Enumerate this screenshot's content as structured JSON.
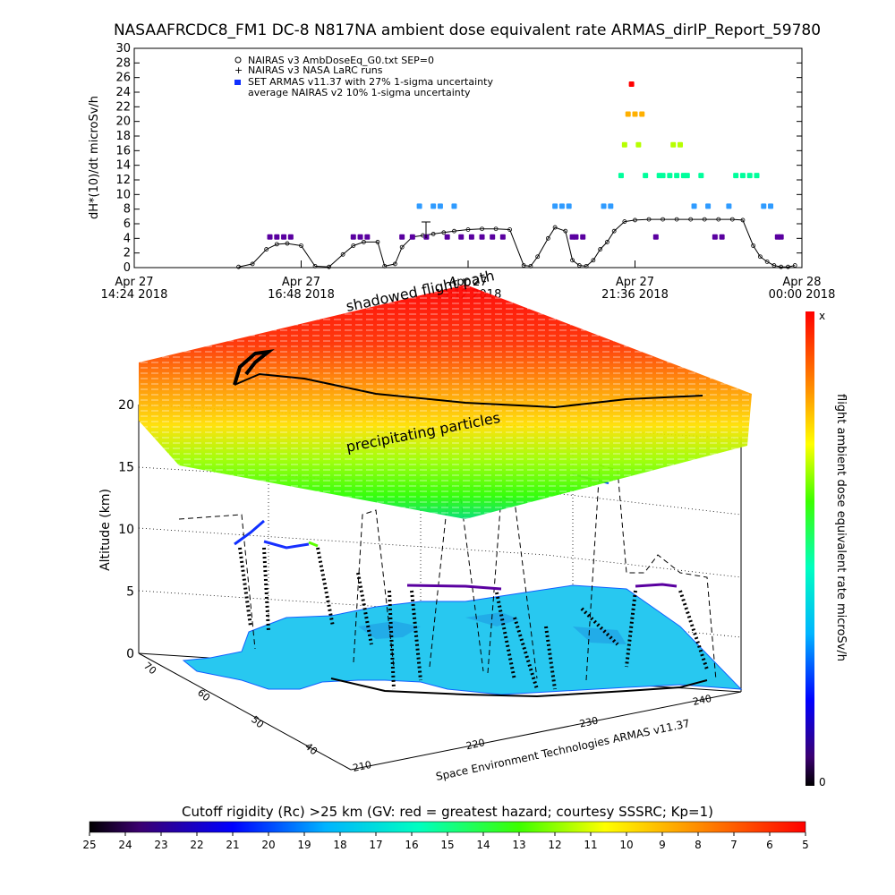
{
  "title": "NASAAFRCDC8_FM1 DC-8   N817NA ambient dose equivalent rate ARMAS_dirIP_Report_59780",
  "colors": {
    "nairas_v3": "#000000",
    "armas_palette": [
      "#000000",
      "#3b0070",
      "#5a00a0",
      "#0000ff",
      "#2f9bff",
      "#00c8ff",
      "#00ff9c",
      "#5cff00",
      "#b6ff00",
      "#ffff00",
      "#ffb000",
      "#ff5a00",
      "#ff0000"
    ],
    "ocean": "#ffffff",
    "land": "#28c8f0",
    "land_edge": "#1060ff"
  },
  "chart_data": [
    {
      "type": "scatter",
      "title": "",
      "ylabel": "dH*(10)/dt microSv/h",
      "xlabel": "",
      "ylim": [
        0,
        30
      ],
      "yticks": [
        0,
        2,
        4,
        6,
        8,
        10,
        12,
        14,
        16,
        18,
        20,
        22,
        24,
        26,
        28,
        30
      ],
      "xlim": [
        "Apr 27 14:24 2018",
        "Apr 28 00:00 2018"
      ],
      "xticks": [
        {
          "date": "Apr 27",
          "time": "14:24 2018",
          "hour": 14.4
        },
        {
          "date": "Apr 27",
          "time": "16:48 2018",
          "hour": 16.8
        },
        {
          "date": "Apr 27",
          "time": "19:12 2018",
          "hour": 19.2
        },
        {
          "date": "Apr 27",
          "time": "21:36 2018",
          "hour": 21.6
        },
        {
          "date": "Apr 28",
          "time": "00:00 2018",
          "hour": 24.0
        }
      ],
      "legend": {
        "position": "top-left",
        "items": [
          {
            "symbol": "diamond",
            "text": "NAIRAS v3 AmbDoseEq_G0.txt SEP=0"
          },
          {
            "symbol": "plus",
            "text": "NAIRAS v3 NASA LaRC runs"
          },
          {
            "symbol": "square-blue",
            "text": "SET ARMAS v11.37 with 27% 1-sigma uncertainty"
          },
          {
            "symbol": "none",
            "text": "average NAIRAS v2 10% 1-sigma uncertainty"
          }
        ]
      },
      "series": [
        {
          "name": "NAIRAS v3 AmbDoseEq_G0.txt SEP=0",
          "hours": [
            15.9,
            16.1,
            16.3,
            16.45,
            16.6,
            16.8,
            17.0,
            17.2,
            17.4,
            17.55,
            17.7,
            17.9,
            18.0,
            18.15,
            18.25,
            18.4,
            18.55,
            18.7,
            18.85,
            19.0,
            19.2,
            19.4,
            19.6,
            19.8,
            20.0,
            20.1,
            20.2,
            20.35,
            20.45,
            20.6,
            20.7,
            20.8,
            20.9,
            21.0,
            21.1,
            21.2,
            21.3,
            21.45,
            21.6,
            21.8,
            22.0,
            22.2,
            22.4,
            22.6,
            22.8,
            23.0,
            23.15,
            23.3,
            23.4,
            23.5,
            23.6,
            23.7,
            23.8,
            23.9
          ],
          "values": [
            0.1,
            0.5,
            2.5,
            3.2,
            3.3,
            3.0,
            0.2,
            0.1,
            1.8,
            3.0,
            3.5,
            3.5,
            0.2,
            0.5,
            2.8,
            4.2,
            4.4,
            4.6,
            4.8,
            5.0,
            5.2,
            5.3,
            5.3,
            5.2,
            0.3,
            0.2,
            1.5,
            4.0,
            5.5,
            5.0,
            1.0,
            0.3,
            0.2,
            1.0,
            2.5,
            3.5,
            5.0,
            6.3,
            6.5,
            6.6,
            6.6,
            6.6,
            6.6,
            6.6,
            6.6,
            6.6,
            6.5,
            3.0,
            1.5,
            0.8,
            0.3,
            0.1,
            0.1,
            0.3
          ]
        },
        {
          "name": "SET ARMAS v11.37 with 27% 1-sigma uncertainty",
          "points": [
            [
              16.35,
              4.2
            ],
            [
              16.45,
              4.2
            ],
            [
              16.55,
              4.2
            ],
            [
              16.65,
              4.2
            ],
            [
              17.55,
              4.2
            ],
            [
              17.65,
              4.2
            ],
            [
              17.75,
              4.2
            ],
            [
              18.25,
              4.2
            ],
            [
              18.4,
              4.2
            ],
            [
              18.5,
              8.4
            ],
            [
              18.6,
              4.2
            ],
            [
              18.7,
              8.4
            ],
            [
              18.8,
              8.4
            ],
            [
              18.9,
              4.2
            ],
            [
              19.0,
              8.4
            ],
            [
              19.1,
              4.2
            ],
            [
              19.25,
              4.2
            ],
            [
              19.4,
              4.2
            ],
            [
              19.55,
              4.2
            ],
            [
              19.7,
              4.2
            ],
            [
              20.45,
              8.4
            ],
            [
              20.55,
              8.4
            ],
            [
              20.65,
              8.4
            ],
            [
              20.7,
              4.2
            ],
            [
              20.75,
              4.2
            ],
            [
              20.85,
              4.2
            ],
            [
              21.15,
              8.4
            ],
            [
              21.25,
              8.4
            ],
            [
              21.4,
              12.6
            ],
            [
              21.45,
              16.8
            ],
            [
              21.5,
              21.0
            ],
            [
              21.55,
              25.1
            ],
            [
              21.6,
              21.0
            ],
            [
              21.65,
              16.8
            ],
            [
              21.7,
              21.0
            ],
            [
              21.75,
              12.6
            ],
            [
              21.9,
              4.2
            ],
            [
              21.95,
              12.6
            ],
            [
              22.0,
              12.6
            ],
            [
              22.1,
              12.6
            ],
            [
              22.15,
              16.8
            ],
            [
              22.2,
              12.6
            ],
            [
              22.25,
              16.8
            ],
            [
              22.3,
              12.6
            ],
            [
              22.35,
              12.6
            ],
            [
              22.45,
              8.4
            ],
            [
              22.55,
              12.6
            ],
            [
              22.65,
              8.4
            ],
            [
              22.75,
              4.2
            ],
            [
              22.85,
              4.2
            ],
            [
              22.95,
              8.4
            ],
            [
              23.05,
              12.6
            ],
            [
              23.15,
              12.6
            ],
            [
              23.25,
              12.6
            ],
            [
              23.35,
              12.6
            ],
            [
              23.45,
              8.4
            ],
            [
              23.55,
              8.4
            ],
            [
              23.65,
              4.2
            ],
            [
              23.7,
              4.2
            ]
          ]
        }
      ]
    },
    {
      "type": "3d-scatter",
      "zlabel": "Altitude (km)",
      "zlim": [
        0,
        20
      ],
      "zticks": [
        0,
        5,
        10,
        15,
        20
      ],
      "lat_ticks": [
        70,
        60,
        50,
        40
      ],
      "lon_ticks": [
        210,
        220,
        230,
        240
      ],
      "xlabel": "Space Environment Technologies ARMAS v11.37",
      "annotations": [
        "shadowed flight path",
        "precipitating particles"
      ],
      "colorbar_right": {
        "label": "flight ambient dose equivalent rate microSv/h",
        "top": "x",
        "bottom": "0"
      },
      "colorbar_bottom": {
        "label": "Cutoff rigidity (Rc) >25 km (GV: red = greatest hazard; courtesy SSSRC; Kp=1)",
        "ticks": [
          25,
          24,
          23,
          22,
          21,
          20,
          19,
          18,
          17,
          16,
          15,
          14,
          13,
          12,
          11,
          10,
          9,
          8,
          7,
          6,
          5
        ]
      }
    }
  ]
}
